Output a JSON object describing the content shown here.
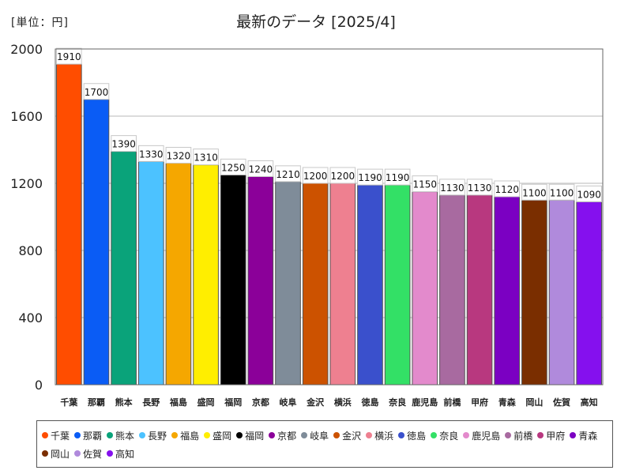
{
  "unit_label": "[単位：円]",
  "chart_data": {
    "type": "bar",
    "title": "最新のデータ [2025/4]",
    "xlabel": "",
    "ylabel": "",
    "ylim": [
      0,
      2000
    ],
    "yticks": [
      0,
      400,
      800,
      1200,
      1600,
      2000
    ],
    "grid": true,
    "legend_position": "bottom",
    "categories": [
      "千葉",
      "那覇",
      "熊本",
      "長野",
      "福島",
      "盛岡",
      "福岡",
      "京都",
      "岐阜",
      "金沢",
      "横浜",
      "徳島",
      "奈良",
      "鹿児島",
      "前橋",
      "甲府",
      "青森",
      "岡山",
      "佐賀",
      "高知"
    ],
    "values": [
      1910,
      1700,
      1390,
      1330,
      1320,
      1310,
      1250,
      1240,
      1210,
      1200,
      1200,
      1190,
      1190,
      1150,
      1130,
      1130,
      1120,
      1100,
      1100,
      1090
    ],
    "colors": [
      "#ff4d00",
      "#0a5cf5",
      "#0aa37a",
      "#4cc2ff",
      "#f5a700",
      "#ffee00",
      "#000000",
      "#8b0099",
      "#7f8c99",
      "#cc5200",
      "#ee8090",
      "#3a50cc",
      "#33e066",
      "#e38acc",
      "#a86aa0",
      "#b8387f",
      "#7b00c2",
      "#7a2e00",
      "#b08adc",
      "#8510ee"
    ]
  }
}
